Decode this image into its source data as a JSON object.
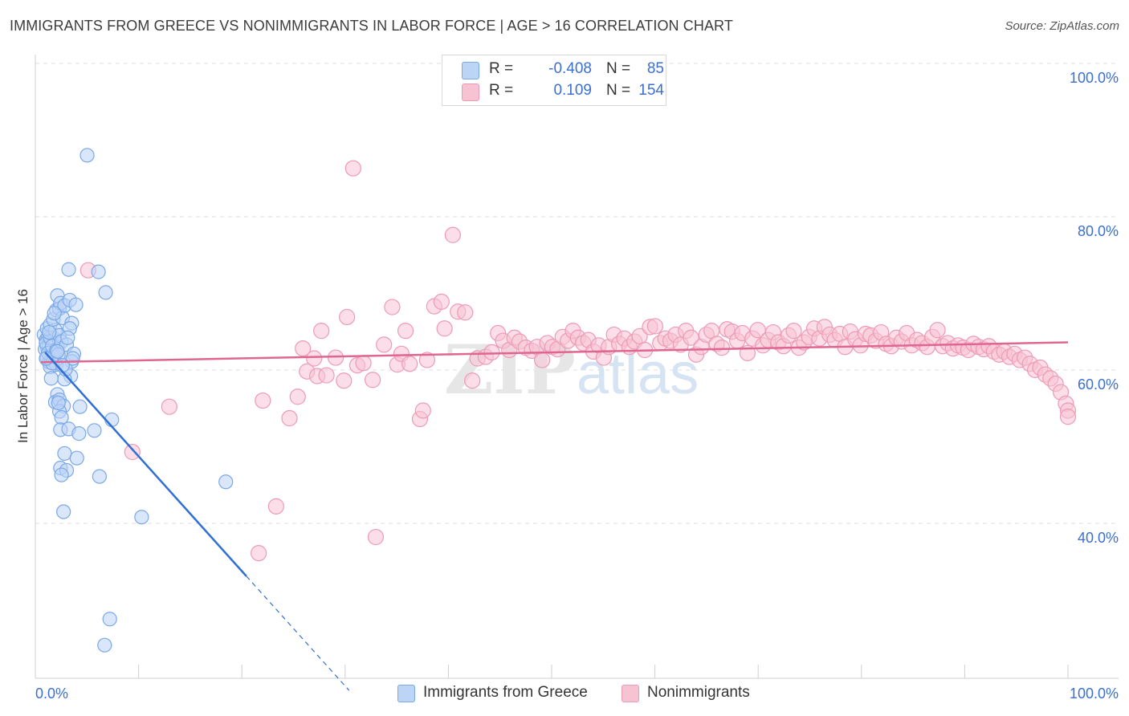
{
  "header": {
    "title": "IMMIGRANTS FROM GREECE VS NONIMMIGRANTS IN LABOR FORCE | AGE > 16 CORRELATION CHART",
    "source": "Source: ZipAtlas.com"
  },
  "watermark": {
    "zip": "ZIP",
    "atlas": "atlas"
  },
  "colors": {
    "blue_fill": "#bcd4f5",
    "blue_stroke": "#7aa8e8",
    "blue_line": "#2f6fd6",
    "pink_fill": "#f7c3d3",
    "pink_stroke": "#ee9ab5",
    "pink_line": "#e06692",
    "value_text": "#3b6fd0",
    "grid": "#dddddd"
  },
  "legend": {
    "rows": [
      {
        "r_label": "R =",
        "r_value": "-0.408",
        "n_label": "N =",
        "n_value": "85"
      },
      {
        "r_label": "R =",
        "r_value": "0.109",
        "n_label": "N =",
        "n_value": "154"
      }
    ]
  },
  "bottom_legend": {
    "series1": "Immigrants from Greece",
    "series2": "Nonimmigrants"
  },
  "chart_data": {
    "type": "scatter",
    "ylabel": "In Labor Force | Age > 16",
    "xlim": [
      0,
      100
    ],
    "ylim": [
      20,
      102
    ],
    "x_tick_labels": [
      "0.0%",
      "100.0%"
    ],
    "y_tick_labels": [
      "100.0%",
      "80.0%",
      "60.0%",
      "40.0%"
    ],
    "y_ticks": [
      100,
      80,
      60,
      40
    ],
    "grid": "horizontal dashed",
    "series": [
      {
        "name": "Immigrants from Greece",
        "r": -0.408,
        "n": 85,
        "trend": {
          "x0": 0.4,
          "y0": 64.2,
          "x1": 20,
          "y1": 35.0,
          "dash_to_x": 30,
          "dash_to_y": 20.1
        },
        "points": [
          [
            0.3,
            66.5
          ],
          [
            0.5,
            65.8
          ],
          [
            0.6,
            64.9
          ],
          [
            0.7,
            66.2
          ],
          [
            0.8,
            65.1
          ],
          [
            0.9,
            64.3
          ],
          [
            1.0,
            65.7
          ],
          [
            1.1,
            63.8
          ],
          [
            1.2,
            65.2
          ],
          [
            1.3,
            66.0
          ],
          [
            0.4,
            64.6
          ],
          [
            0.6,
            63.5
          ],
          [
            0.8,
            62.9
          ],
          [
            1.0,
            63.2
          ],
          [
            1.2,
            64.0
          ],
          [
            1.4,
            65.5
          ],
          [
            1.5,
            62.6
          ],
          [
            1.6,
            64.8
          ],
          [
            0.5,
            65.4
          ],
          [
            0.7,
            64.1
          ],
          [
            0.9,
            66.1
          ],
          [
            1.1,
            65.0
          ],
          [
            1.3,
            63.6
          ],
          [
            1.5,
            64.4
          ],
          [
            1.7,
            63.9
          ],
          [
            0.6,
            67.3
          ],
          [
            0.9,
            67.8
          ],
          [
            1.4,
            67.1
          ],
          [
            1.8,
            66.4
          ],
          [
            2.0,
            65.6
          ],
          [
            1.2,
            68.5
          ],
          [
            1.5,
            69.7
          ],
          [
            1.8,
            69.9
          ],
          [
            2.1,
            68.7
          ],
          [
            1.6,
            71.6
          ],
          [
            1.9,
            70.6
          ],
          [
            2.3,
            70.3
          ],
          [
            2.8,
            71.0
          ],
          [
            3.4,
            70.4
          ],
          [
            3.0,
            68.0
          ],
          [
            2.8,
            67.3
          ],
          [
            2.5,
            65.2
          ],
          [
            3.2,
            64.0
          ],
          [
            3.0,
            63.0
          ],
          [
            2.9,
            61.1
          ],
          [
            1.6,
            58.7
          ],
          [
            1.4,
            57.7
          ],
          [
            1.8,
            58.0
          ],
          [
            2.2,
            57.2
          ],
          [
            1.8,
            56.5
          ],
          [
            2.0,
            55.7
          ],
          [
            1.9,
            54.1
          ],
          [
            2.7,
            54.2
          ],
          [
            3.7,
            53.6
          ],
          [
            5.2,
            54.0
          ],
          [
            6.9,
            55.4
          ],
          [
            2.3,
            51.0
          ],
          [
            3.5,
            50.4
          ],
          [
            1.9,
            49.1
          ],
          [
            2.5,
            48.8
          ],
          [
            2.0,
            48.2
          ],
          [
            5.7,
            48.0
          ],
          [
            2.2,
            43.4
          ],
          [
            9.8,
            42.7
          ],
          [
            18.0,
            47.3
          ],
          [
            2.7,
            75.0
          ],
          [
            5.6,
            74.7
          ],
          [
            6.3,
            72.0
          ],
          [
            4.5,
            89.9
          ],
          [
            6.7,
            29.4
          ],
          [
            6.2,
            26.0
          ],
          [
            2.3,
            60.7
          ],
          [
            0.9,
            62.3
          ],
          [
            1.1,
            62.8
          ],
          [
            0.5,
            63.4
          ],
          [
            2.4,
            62.0
          ],
          [
            3.1,
            63.4
          ],
          [
            1.0,
            60.8
          ],
          [
            1.7,
            57.6
          ],
          [
            0.8,
            66.8
          ],
          [
            2.6,
            66.1
          ],
          [
            1.3,
            69.3
          ],
          [
            3.8,
            57.1
          ],
          [
            2.1,
            62.5
          ],
          [
            1.6,
            64.3
          ]
        ]
      },
      {
        "name": "Nonimmigrants",
        "r": 0.109,
        "n": 154,
        "trend": {
          "x0": 0,
          "y0": 62.9,
          "x1": 100,
          "y1": 65.5
        },
        "points": [
          [
            4.6,
            74.9
          ],
          [
            8.9,
            51.2
          ],
          [
            12.5,
            57.1
          ],
          [
            21.6,
            57.9
          ],
          [
            21.2,
            38.0
          ],
          [
            22.9,
            44.1
          ],
          [
            24.2,
            55.6
          ],
          [
            25.0,
            58.4
          ],
          [
            25.5,
            64.7
          ],
          [
            25.9,
            61.7
          ],
          [
            26.6,
            63.4
          ],
          [
            26.9,
            61.1
          ],
          [
            27.3,
            67.0
          ],
          [
            27.8,
            61.2
          ],
          [
            28.7,
            63.5
          ],
          [
            29.5,
            60.5
          ],
          [
            29.8,
            68.8
          ],
          [
            30.4,
            88.2
          ],
          [
            30.8,
            62.5
          ],
          [
            31.4,
            62.8
          ],
          [
            32.3,
            60.6
          ],
          [
            32.6,
            40.1
          ],
          [
            33.4,
            65.2
          ],
          [
            34.2,
            70.1
          ],
          [
            34.7,
            62.6
          ],
          [
            35.1,
            64.0
          ],
          [
            35.5,
            67.0
          ],
          [
            35.9,
            62.7
          ],
          [
            36.9,
            55.5
          ],
          [
            37.2,
            56.6
          ],
          [
            37.6,
            63.2
          ],
          [
            38.3,
            70.2
          ],
          [
            39.0,
            70.8
          ],
          [
            39.3,
            67.3
          ],
          [
            40.1,
            79.5
          ],
          [
            40.6,
            69.5
          ],
          [
            41.3,
            69.4
          ],
          [
            42.0,
            60.5
          ],
          [
            42.5,
            63.4
          ],
          [
            43.3,
            63.6
          ],
          [
            43.9,
            64.2
          ],
          [
            44.5,
            66.7
          ],
          [
            45.0,
            65.7
          ],
          [
            45.6,
            64.5
          ],
          [
            46.1,
            66.1
          ],
          [
            46.6,
            65.6
          ],
          [
            47.2,
            64.8
          ],
          [
            47.8,
            64.4
          ],
          [
            48.3,
            64.9
          ],
          [
            48.8,
            63.2
          ],
          [
            49.3,
            65.4
          ],
          [
            49.8,
            64.9
          ],
          [
            50.3,
            64.6
          ],
          [
            50.8,
            66.2
          ],
          [
            51.3,
            65.7
          ],
          [
            51.8,
            67.0
          ],
          [
            52.3,
            66.1
          ],
          [
            52.8,
            65.4
          ],
          [
            53.3,
            65.8
          ],
          [
            53.8,
            64.3
          ],
          [
            54.3,
            65.1
          ],
          [
            54.8,
            63.5
          ],
          [
            55.3,
            64.9
          ],
          [
            55.8,
            66.5
          ],
          [
            56.3,
            65.3
          ],
          [
            56.8,
            66.0
          ],
          [
            57.3,
            64.9
          ],
          [
            57.8,
            65.6
          ],
          [
            58.3,
            66.3
          ],
          [
            58.8,
            64.5
          ],
          [
            59.3,
            67.5
          ],
          [
            59.8,
            67.6
          ],
          [
            60.3,
            65.4
          ],
          [
            60.8,
            66.0
          ],
          [
            61.3,
            65.7
          ],
          [
            61.8,
            66.5
          ],
          [
            62.3,
            65.2
          ],
          [
            62.8,
            67.0
          ],
          [
            63.3,
            66.1
          ],
          [
            63.8,
            63.9
          ],
          [
            64.3,
            64.9
          ],
          [
            64.8,
            66.5
          ],
          [
            65.3,
            67.0
          ],
          [
            65.8,
            65.3
          ],
          [
            66.3,
            64.8
          ],
          [
            66.8,
            67.2
          ],
          [
            67.3,
            66.9
          ],
          [
            67.8,
            65.7
          ],
          [
            68.3,
            66.7
          ],
          [
            68.8,
            64.1
          ],
          [
            69.3,
            66.0
          ],
          [
            69.8,
            67.1
          ],
          [
            70.3,
            65.1
          ],
          [
            70.8,
            65.8
          ],
          [
            71.3,
            66.8
          ],
          [
            71.8,
            65.5
          ],
          [
            72.3,
            65.0
          ],
          [
            72.8,
            66.4
          ],
          [
            73.3,
            67.0
          ],
          [
            73.8,
            64.8
          ],
          [
            74.3,
            65.5
          ],
          [
            74.8,
            66.2
          ],
          [
            75.3,
            67.3
          ],
          [
            75.8,
            66.0
          ],
          [
            76.3,
            67.5
          ],
          [
            76.8,
            66.5
          ],
          [
            77.3,
            65.8
          ],
          [
            77.8,
            66.6
          ],
          [
            78.3,
            64.9
          ],
          [
            78.8,
            66.9
          ],
          [
            79.3,
            65.9
          ],
          [
            79.8,
            65.1
          ],
          [
            80.3,
            66.6
          ],
          [
            80.8,
            66.4
          ],
          [
            81.3,
            65.7
          ],
          [
            81.8,
            66.8
          ],
          [
            82.3,
            65.3
          ],
          [
            82.8,
            65.0
          ],
          [
            83.3,
            66.1
          ],
          [
            83.8,
            65.6
          ],
          [
            84.3,
            66.7
          ],
          [
            84.8,
            65.1
          ],
          [
            85.3,
            65.8
          ],
          [
            85.8,
            65.4
          ],
          [
            86.3,
            64.9
          ],
          [
            86.8,
            66.2
          ],
          [
            87.3,
            67.1
          ],
          [
            87.8,
            65.0
          ],
          [
            88.3,
            65.4
          ],
          [
            88.8,
            64.7
          ],
          [
            89.3,
            65.1
          ],
          [
            89.8,
            64.8
          ],
          [
            90.3,
            64.5
          ],
          [
            90.8,
            65.3
          ],
          [
            91.3,
            64.9
          ],
          [
            91.8,
            64.6
          ],
          [
            92.3,
            65.0
          ],
          [
            92.8,
            64.3
          ],
          [
            93.3,
            63.9
          ],
          [
            93.8,
            64.3
          ],
          [
            94.3,
            63.6
          ],
          [
            94.8,
            64.0
          ],
          [
            95.3,
            63.2
          ],
          [
            95.8,
            63.5
          ],
          [
            96.3,
            62.7
          ],
          [
            96.8,
            61.9
          ],
          [
            97.3,
            62.2
          ],
          [
            97.8,
            61.3
          ],
          [
            98.3,
            60.8
          ],
          [
            98.8,
            60.1
          ],
          [
            99.3,
            59.0
          ],
          [
            99.8,
            57.5
          ],
          [
            100.0,
            56.6
          ],
          [
            100.0,
            55.8
          ]
        ]
      }
    ]
  }
}
